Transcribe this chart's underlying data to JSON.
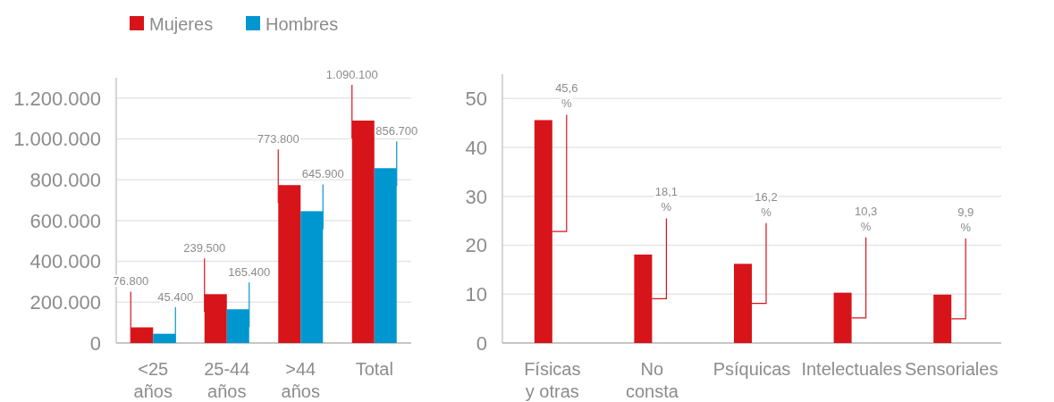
{
  "chart_data": [
    {
      "type": "bar",
      "categories": [
        "<25 años",
        "25-44 años",
        ">44 años",
        "Total"
      ],
      "series": [
        {
          "name": "Mujeres",
          "color": "#d7141a",
          "values": [
            76800,
            239500,
            773800,
            1090100
          ],
          "value_labels": [
            "76.800",
            "239.500",
            "773.800",
            "1.090.100"
          ]
        },
        {
          "name": "Hombres",
          "color": "#0096cf",
          "values": [
            45400,
            165400,
            645900,
            856700
          ],
          "value_labels": [
            "45.400",
            "165.400",
            "645.900",
            "856.700"
          ]
        }
      ],
      "ylim": [
        0,
        1300000
      ],
      "yticks": [
        0,
        {
          "value": 200000,
          "label": "200.000"
        },
        {
          "value": 400000,
          "label": "400.000"
        },
        {
          "value": 600000,
          "label": "600.000"
        },
        {
          "value": 800000,
          "label": "800.000"
        },
        {
          "value": 1000000,
          "label": "1.000.000"
        },
        {
          "value": 1200000,
          "label": "1.200.000"
        }
      ],
      "grid": "y",
      "legend": "top left"
    },
    {
      "type": "bar",
      "categories": [
        "Físicas y otras",
        "No consta",
        "Psíquicas",
        "Intelectuales",
        "Sensoriales"
      ],
      "series": [
        {
          "color": "#d7141a",
          "values": [
            45.6,
            18.1,
            16.2,
            10.3,
            9.9
          ],
          "value_labels": [
            "45,6 %",
            "18,1 %",
            "16,2 %",
            "10,3 %",
            "9,9 %"
          ]
        }
      ],
      "ylim": [
        0,
        55
      ],
      "yticks": [
        0,
        10,
        20,
        30,
        40,
        50
      ],
      "grid": "y"
    }
  ]
}
